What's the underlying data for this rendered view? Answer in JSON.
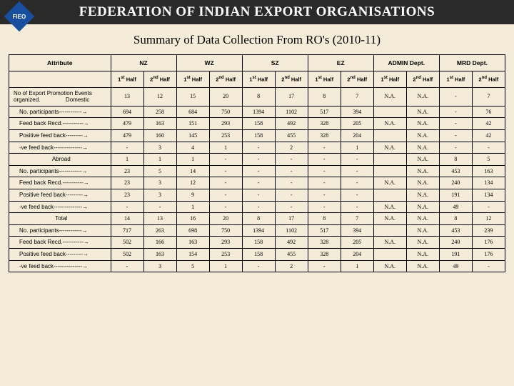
{
  "header": {
    "logo_text": "FIEO",
    "title": "FEDERATION OF INDIAN EXPORT ORGANISATIONS"
  },
  "subtitle": "Summary of Data Collection From RO's (2010-11)",
  "table": {
    "attribute_label": "Attribute",
    "groups": [
      "NZ",
      "WZ",
      "SZ",
      "EZ",
      "ADMIN Dept.",
      "MRD Dept."
    ],
    "half_labels": [
      "1st Half",
      "2nd Half"
    ],
    "rows": [
      {
        "label": "No of Export Promotion Events organized.                Domestic",
        "v": [
          "13",
          "12",
          "15",
          "20",
          "8",
          "17",
          "8",
          "7",
          "N.A.",
          "N.A.",
          "-",
          "7"
        ]
      },
      {
        "label": "No. participants------------→",
        "indent": true,
        "v": [
          "694",
          "258",
          "684",
          "750",
          "1394",
          "1102",
          "517",
          "394",
          "",
          "N.A.",
          "-",
          "76"
        ]
      },
      {
        "label": "Feed back Recd.-----------→",
        "indent": true,
        "v": [
          "479",
          "163",
          "151",
          "293",
          "158",
          "492",
          "328",
          "205",
          "N.A.",
          "N.A.",
          "-",
          "42"
        ]
      },
      {
        "label": "Positive feed back---------→",
        "indent": true,
        "v": [
          "479",
          "160",
          "145",
          "253",
          "158",
          "455",
          "328",
          "204",
          "",
          "N.A.",
          "-",
          "42"
        ]
      },
      {
        "label": "-ve feed back---------------→",
        "indent": true,
        "v": [
          "-",
          "3",
          "4",
          "1",
          "-",
          "2",
          "-",
          "1",
          "N.A.",
          "N.A.",
          "-",
          "-"
        ]
      },
      {
        "label": "Abroad",
        "center": true,
        "v": [
          "1",
          "1",
          "1",
          "-",
          "-",
          "-",
          "-",
          "-",
          "",
          "N.A.",
          "8",
          "5"
        ]
      },
      {
        "label": "No. participants------------→",
        "indent": true,
        "v": [
          "23",
          "5",
          "14",
          "-",
          "-",
          "-",
          "-",
          "-",
          "",
          "N.A.",
          "453",
          "163"
        ]
      },
      {
        "label": "Feed back Recd.-----------→",
        "indent": true,
        "v": [
          "23",
          "3",
          "12",
          "-",
          "-",
          "-",
          "-",
          "-",
          "N.A.",
          "N.A.",
          "240",
          "134"
        ]
      },
      {
        "label": "Positive feed back---------→",
        "indent": true,
        "v": [
          "23",
          "3",
          "9",
          "-",
          "-",
          "-",
          "-",
          "-",
          "",
          "N.A.",
          "191",
          "134"
        ]
      },
      {
        "label": "-ve feed back---------------→",
        "indent": true,
        "v": [
          "-",
          "-",
          "1",
          "-",
          "-",
          "-",
          "-",
          "-",
          "N.A.",
          "N.A.",
          "49",
          "-"
        ]
      },
      {
        "label": "Total",
        "center": true,
        "v": [
          "14",
          "13",
          "16",
          "20",
          "8",
          "17",
          "8",
          "7",
          "N.A.",
          "N.A.",
          "8",
          "12"
        ]
      },
      {
        "label": "No. participants------------→",
        "indent": true,
        "v": [
          "717",
          "263",
          "698",
          "750",
          "1394",
          "1102",
          "517",
          "394",
          "",
          "N.A.",
          "453",
          "239"
        ]
      },
      {
        "label": "Feed back Recd.-----------→",
        "indent": true,
        "v": [
          "502",
          "166",
          "163",
          "293",
          "158",
          "492",
          "328",
          "205",
          "N.A.",
          "N.A.",
          "240",
          "176"
        ]
      },
      {
        "label": "Positive feed back---------→",
        "indent": true,
        "v": [
          "502",
          "163",
          "154",
          "253",
          "158",
          "455",
          "328",
          "204",
          "",
          "N.A.",
          "191",
          "176"
        ]
      },
      {
        "label": "-ve feed back---------------→",
        "indent": true,
        "v": [
          "-",
          "3",
          "5",
          "1",
          "-",
          "2",
          "-",
          "1",
          "N.A.",
          "N.A.",
          "49",
          "-"
        ]
      }
    ]
  },
  "styling": {
    "background": "#f4ecd8",
    "header_bg": "#2a2a2a",
    "logo_bg": "#1a4fa0",
    "border_color": "#000000",
    "title_color": "#ffffff"
  }
}
